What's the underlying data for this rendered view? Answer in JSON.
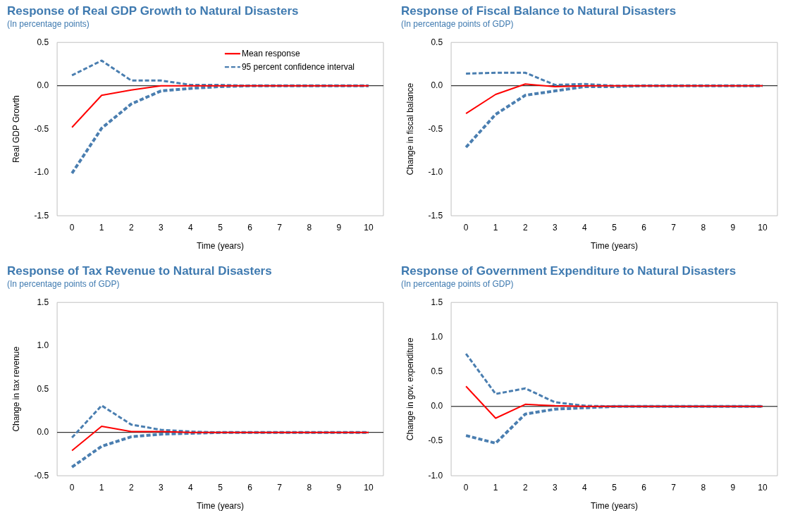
{
  "chart_data": [
    {
      "type": "line",
      "title": "Response of Real GDP Growth to Natural Disasters",
      "subtitle": "(In percentage points)",
      "xlabel": "Time (years)",
      "ylabel": "Real GDP Growth",
      "categories": [
        "0",
        "1",
        "2",
        "3",
        "4",
        "5",
        "6",
        "7",
        "8",
        "9",
        "10"
      ],
      "ylim": [
        -1.5,
        0.5
      ],
      "yticks": [
        {
          "value": -1.5,
          "label": "-1.5"
        },
        {
          "value": -1,
          "label": "-1.0"
        },
        {
          "value": -0.5,
          "label": "-0.5"
        },
        {
          "value": 0,
          "label": "0.0"
        },
        {
          "value": 0.5,
          "label": "0.5"
        }
      ],
      "grid": false,
      "legend": "top right",
      "marker": "none",
      "ref_lines": [
        {
          "axis": "y",
          "value": 0,
          "color": "#000000"
        }
      ],
      "series": [
        {
          "name": "Mean response",
          "color": "#ff0000",
          "line_style": "solid",
          "values": [
            -0.48,
            -0.11,
            -0.05,
            0,
            0,
            0,
            0,
            0,
            0,
            0,
            0
          ]
        },
        {
          "name": "95 percent confidence interval",
          "color": "#4a7eb0",
          "line_style": "dashed",
          "values": [
            0.12,
            0.29,
            0.06,
            0.06,
            0.01,
            0.01,
            0,
            0,
            0,
            0,
            0
          ]
        },
        {
          "color": "#4a7eb0",
          "line_style": "dashed",
          "values": [
            -1.01,
            -0.49,
            -0.21,
            -0.06,
            -0.03,
            -0.01,
            0,
            0,
            0,
            0,
            0
          ]
        }
      ]
    },
    {
      "type": "line",
      "title": "Response of Fiscal Balance to Natural Disasters",
      "subtitle": "(In percentage points of GDP)",
      "xlabel": "Time (years)",
      "ylabel": "Change in fiscal balance",
      "categories": [
        "0",
        "1",
        "2",
        "3",
        "4",
        "5",
        "6",
        "7",
        "8",
        "9",
        "10"
      ],
      "ylim": [
        -1.5,
        0.5
      ],
      "yticks": [
        {
          "value": -1.5,
          "label": "-1.5"
        },
        {
          "value": -1,
          "label": "-1.0"
        },
        {
          "value": -0.5,
          "label": "-0.5"
        },
        {
          "value": 0,
          "label": "0.0"
        },
        {
          "value": 0.5,
          "label": "0.5"
        }
      ],
      "grid": false,
      "legend": false,
      "marker": "none",
      "ref_lines": [
        {
          "axis": "y",
          "value": 0,
          "color": "#000000"
        }
      ],
      "series": [
        {
          "color": "#ff0000",
          "line_style": "solid",
          "values": [
            -0.32,
            -0.1,
            0.02,
            -0.01,
            0,
            0,
            0,
            0,
            0,
            0,
            0
          ]
        },
        {
          "color": "#4a7eb0",
          "line_style": "dashed",
          "values": [
            0.14,
            0.15,
            0.15,
            0.01,
            0.02,
            0,
            0,
            0,
            0,
            0,
            0
          ]
        },
        {
          "color": "#4a7eb0",
          "line_style": "dashed",
          "values": [
            -0.71,
            -0.33,
            -0.11,
            -0.06,
            -0.01,
            -0.01,
            0,
            0,
            0,
            0,
            0
          ]
        }
      ]
    },
    {
      "type": "line",
      "title": "Response of Tax Revenue to Natural Disasters",
      "subtitle": "(In percentage points of GDP)",
      "xlabel": "Time (years)",
      "ylabel": "Change in tax revenue",
      "categories": [
        "0",
        "1",
        "2",
        "3",
        "4",
        "5",
        "6",
        "7",
        "8",
        "9",
        "10"
      ],
      "ylim": [
        -0.5,
        1.5
      ],
      "yticks": [
        {
          "value": -0.5,
          "label": "-0.5"
        },
        {
          "value": 0,
          "label": "0.0"
        },
        {
          "value": 0.5,
          "label": "0.5"
        },
        {
          "value": 1,
          "label": "1.0"
        },
        {
          "value": 1.5,
          "label": "1.5"
        }
      ],
      "grid": false,
      "legend": false,
      "marker": "none",
      "ref_lines": [
        {
          "axis": "y",
          "value": 0,
          "color": "#000000"
        }
      ],
      "series": [
        {
          "color": "#ff0000",
          "line_style": "solid",
          "values": [
            -0.21,
            0.07,
            0.01,
            0.01,
            0,
            0,
            0,
            0,
            0,
            0,
            0
          ]
        },
        {
          "color": "#4a7eb0",
          "line_style": "dashed",
          "values": [
            -0.06,
            0.31,
            0.09,
            0.03,
            0.01,
            0,
            0,
            0,
            0,
            0,
            0
          ]
        },
        {
          "color": "#4a7eb0",
          "line_style": "dashed",
          "values": [
            -0.4,
            -0.16,
            -0.05,
            -0.02,
            -0.01,
            0,
            0,
            0,
            0,
            0,
            0
          ]
        }
      ]
    },
    {
      "type": "line",
      "title": "Response of Government Expenditure to Natural Disasters",
      "subtitle": "(In percentage points of GDP)",
      "xlabel": "Time (years)",
      "ylabel": "Change in gov. expenditure",
      "categories": [
        "0",
        "1",
        "2",
        "3",
        "4",
        "5",
        "6",
        "7",
        "8",
        "9",
        "10"
      ],
      "ylim": [
        -1,
        1.5
      ],
      "yticks": [
        {
          "value": -1,
          "label": "-1.0"
        },
        {
          "value": -0.5,
          "label": "-0.5"
        },
        {
          "value": 0,
          "label": "0.0"
        },
        {
          "value": 0.5,
          "label": "0.5"
        },
        {
          "value": 1,
          "label": "1.0"
        },
        {
          "value": 1.5,
          "label": "1.5"
        }
      ],
      "grid": false,
      "legend": false,
      "marker": "none",
      "ref_lines": [
        {
          "axis": "y",
          "value": 0,
          "color": "#000000"
        }
      ],
      "series": [
        {
          "color": "#ff0000",
          "line_style": "solid",
          "values": [
            0.29,
            -0.17,
            0.03,
            0.01,
            0,
            0,
            0,
            0,
            0,
            0,
            0
          ]
        },
        {
          "color": "#4a7eb0",
          "line_style": "dashed",
          "values": [
            0.76,
            0.18,
            0.26,
            0.06,
            0.01,
            0,
            0,
            0,
            0,
            0,
            0
          ]
        },
        {
          "color": "#4a7eb0",
          "line_style": "dashed",
          "values": [
            -0.42,
            -0.53,
            -0.11,
            -0.04,
            -0.02,
            0,
            0,
            0,
            0,
            0,
            0
          ]
        }
      ]
    }
  ]
}
